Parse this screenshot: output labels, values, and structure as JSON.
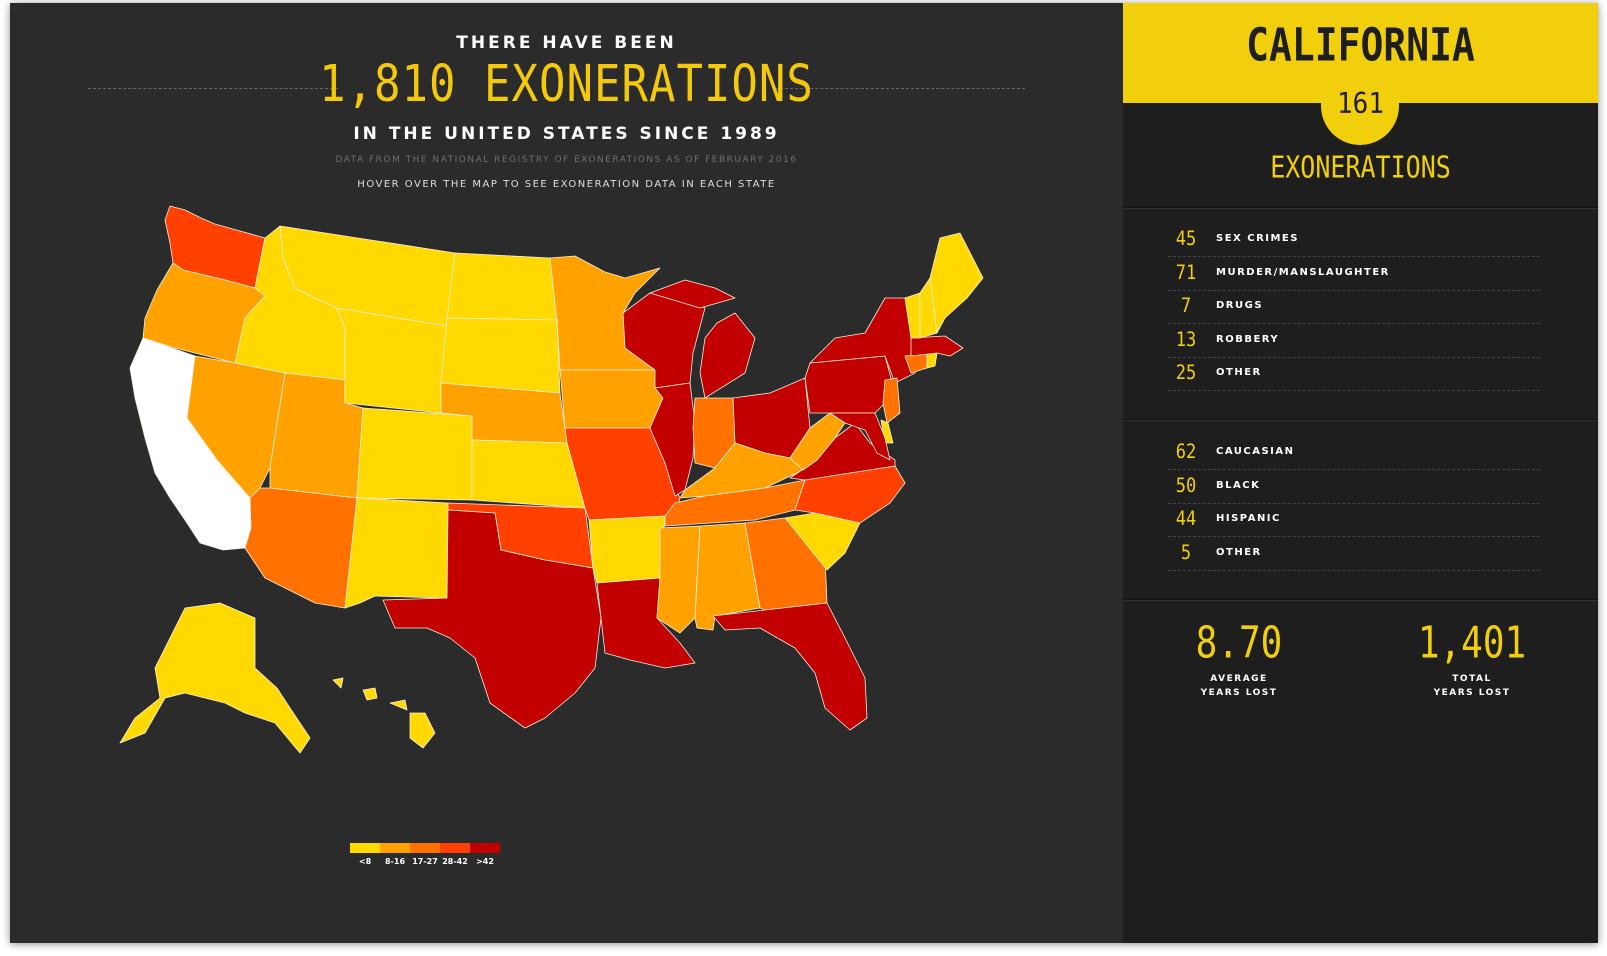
{
  "header": {
    "pre": "THERE HAVE BEEN",
    "count_line": "1,810 EXONERATIONS",
    "post": "IN THE UNITED STATES SINCE 1989",
    "source": "DATA FROM THE NATIONAL REGISTRY OF EXONERATIONS AS OF FEBRUARY 2016",
    "hint": "HOVER OVER THE MAP TO SEE EXONERATION DATA IN EACH STATE"
  },
  "colors": {
    "c1": "#ffd900",
    "c2": "#ffa200",
    "c3": "#ff7200",
    "c4": "#ff4000",
    "c5": "#c20000",
    "selected": "#ffffff",
    "accent": "#f1cf0c"
  },
  "legend": [
    {
      "label": "<8",
      "color": "#ffd900"
    },
    {
      "label": "8-16",
      "color": "#ffa200"
    },
    {
      "label": "17-27",
      "color": "#ff7200"
    },
    {
      "label": "28-42",
      "color": "#ff4000"
    },
    {
      "label": ">42",
      "color": "#c20000"
    }
  ],
  "map": {
    "selected_state": "CA",
    "states": {
      "WA": "c4",
      "OR": "c2",
      "CA": "selected",
      "NV": "c2",
      "ID": "c1",
      "MT": "c1",
      "WY": "c1",
      "UT": "c2",
      "AZ": "c3",
      "CO": "c1",
      "NM": "c1",
      "ND": "c1",
      "SD": "c1",
      "NE": "c2",
      "KS": "c1",
      "OK": "c4",
      "TX": "c5",
      "MN": "c2",
      "IA": "c2",
      "MO": "c4",
      "AR": "c1",
      "LA": "c5",
      "WI": "c5",
      "IL": "c5",
      "MI": "c5",
      "IN": "c3",
      "OH": "c5",
      "KY": "c2",
      "TN": "c3",
      "MS": "c2",
      "AL": "c2",
      "GA": "c3",
      "FL": "c5",
      "SC": "c1",
      "NC": "c4",
      "VA": "c5",
      "WV": "c2",
      "PA": "c5",
      "NY": "c5",
      "NJ": "c3",
      "DE": "c1",
      "MD": "c5",
      "CT": "c3",
      "RI": "c1",
      "MA": "c5",
      "VT": "c1",
      "NH": "c1",
      "ME": "c1",
      "AK": "c1",
      "HI": "c1"
    }
  },
  "panel": {
    "state_name": "CALIFORNIA",
    "count": "161",
    "label": "EXONERATIONS",
    "crimes": [
      {
        "num": "45",
        "label": "SEX CRIMES"
      },
      {
        "num": "71",
        "label": "MURDER/MANSLAUGHTER"
      },
      {
        "num": "7",
        "label": "DRUGS"
      },
      {
        "num": "13",
        "label": "ROBBERY"
      },
      {
        "num": "25",
        "label": "OTHER"
      }
    ],
    "races": [
      {
        "num": "62",
        "label": "CAUCASIAN"
      },
      {
        "num": "50",
        "label": "BLACK"
      },
      {
        "num": "44",
        "label": "HISPANIC"
      },
      {
        "num": "5",
        "label": "OTHER"
      }
    ],
    "avg_value": "8.70",
    "avg_label_1": "AVERAGE",
    "avg_label_2": "YEARS LOST",
    "total_value": "1,401",
    "total_label_1": "TOTAL",
    "total_label_2": "YEARS LOST"
  }
}
